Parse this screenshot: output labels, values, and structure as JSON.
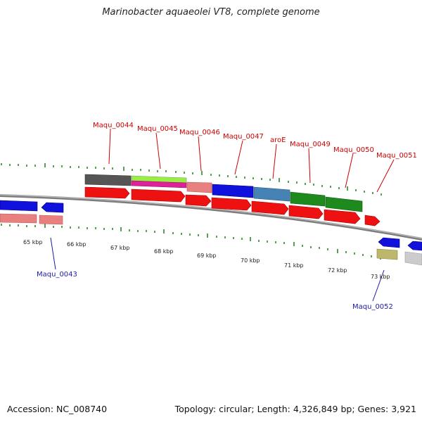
{
  "title": "Marinobacter aquaeolei VT8, complete genome",
  "footer": {
    "accession": "Accession: NC_008740",
    "summary": "Topology: circular; Length: 4,326,849 bp; Genes: 3,921"
  },
  "kbp_ticks": [
    "65 kbp",
    "66 kbp",
    "67 kbp",
    "68 kbp",
    "69 kbp",
    "70 kbp",
    "71 kbp",
    "72 kbp",
    "73 kbp"
  ],
  "gene_labels_top": [
    "Maqu_0044",
    "Maqu_0045",
    "Maqu_0046",
    "Maqu_0047",
    "aroE",
    "Maqu_0049",
    "Maqu_0050",
    "Maqu_0051"
  ],
  "gene_labels_bottom": [
    "Maqu_0043",
    "Maqu_0052"
  ],
  "colors": {
    "backbone": "#888888",
    "cds_red": "#ee1111",
    "forward_blue": "#1111dd",
    "pink": "#e88080",
    "dark_gray": "#555555",
    "lime": "#99ee44",
    "magenta": "#dd2299",
    "steel_blue": "#4682b4",
    "green": "#1e8a1e",
    "khaki": "#bdb76b",
    "light_gray": "#cccccc",
    "tick_green": "#2a8a2a",
    "label_red": "#cc0000",
    "label_blue": "#1a1aa6"
  }
}
